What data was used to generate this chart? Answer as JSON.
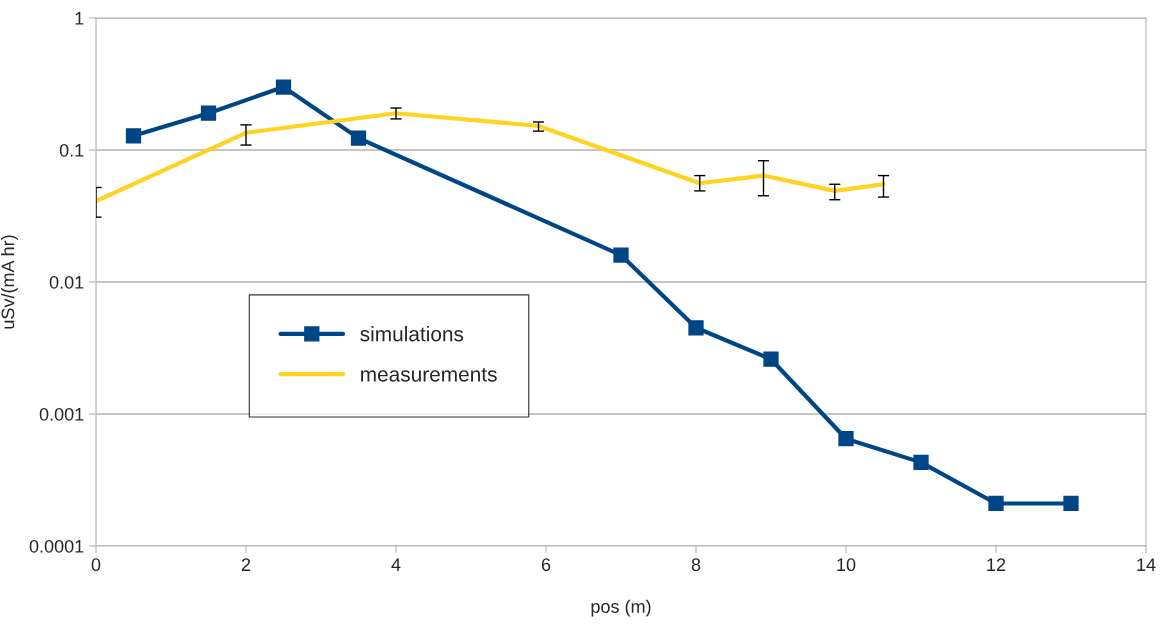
{
  "chart_data": {
    "type": "line",
    "xlabel": "pos (m)",
    "ylabel": "uSv/(mA hr)",
    "log": "y",
    "xlim": [
      0,
      14
    ],
    "xticks": [
      0,
      2,
      4,
      6,
      8,
      10,
      12,
      14
    ],
    "ylim": [
      0.0001,
      1
    ],
    "yticks": [
      {
        "value": 0.0001,
        "label": "0.0001"
      },
      {
        "value": 0.001,
        "label": "0.001"
      },
      {
        "value": 0.01,
        "label": "0.01"
      },
      {
        "value": 0.1,
        "label": "0.1"
      },
      {
        "value": 1,
        "label": "1"
      }
    ],
    "grid": "y",
    "legend": "left",
    "series": [
      {
        "name": "simulations",
        "color": "#004586",
        "marker": "square",
        "x": [
          0.5,
          1.5,
          2.5,
          3.5,
          7,
          8,
          9,
          10,
          11,
          12,
          13
        ],
        "values": [
          0.128,
          0.19,
          0.3,
          0.123,
          0.016,
          0.0045,
          0.0026,
          0.00065,
          0.00043,
          0.00021,
          0.00021
        ]
      },
      {
        "name": "measurements",
        "color": "#ffd320",
        "marker": "none",
        "x": [
          0,
          2,
          4,
          5.9,
          8.05,
          8.9,
          9.85,
          10.5
        ],
        "values": [
          0.041,
          0.135,
          0.19,
          0.152,
          0.056,
          0.064,
          0.049,
          0.055
        ],
        "errors": [
          [
            0.031,
            0.052
          ],
          [
            0.109,
            0.155
          ],
          [
            0.172,
            0.208
          ],
          [
            0.139,
            0.163
          ],
          [
            0.049,
            0.064
          ],
          [
            0.045,
            0.083
          ],
          [
            0.042,
            0.055
          ],
          [
            0.044,
            0.064
          ]
        ]
      }
    ]
  }
}
